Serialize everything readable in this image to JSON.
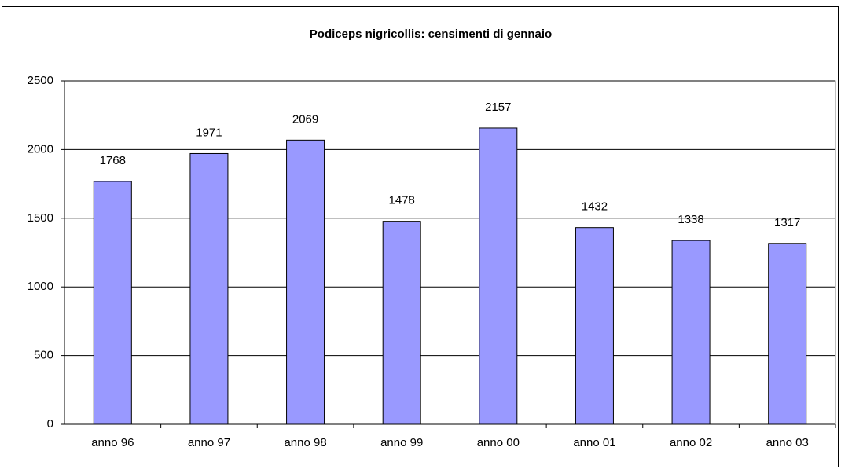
{
  "chart_data": {
    "type": "bar",
    "title": "Podiceps nigricollis: censimenti di gennaio",
    "categories": [
      "anno 96",
      "anno 97",
      "anno 98",
      "anno 99",
      "anno 00",
      "anno 01",
      "anno 02",
      "anno 03"
    ],
    "values": [
      1768,
      1971,
      2069,
      1478,
      2157,
      1432,
      1338,
      1317
    ],
    "color": "#9999ff",
    "ylim": [
      0,
      2500
    ],
    "yticks": [
      0,
      500,
      1000,
      1500,
      2000,
      2500
    ],
    "grid": true
  }
}
